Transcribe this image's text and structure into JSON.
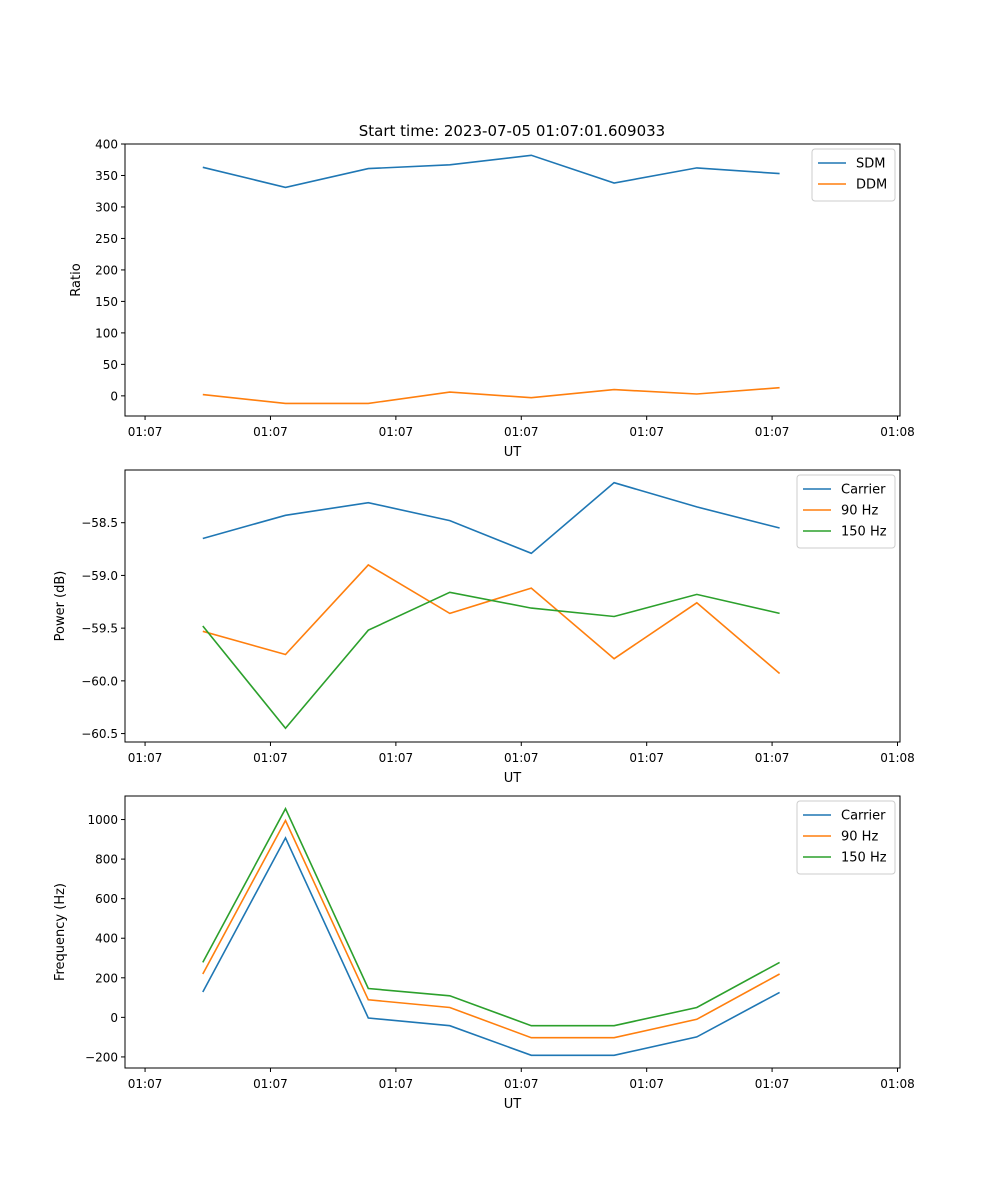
{
  "title": "Start time: 2023-07-05 01:07:01.609033",
  "colors": {
    "blue": "#1f77b4",
    "orange": "#ff7f0e",
    "green": "#2ca02c"
  },
  "chart_data": [
    {
      "type": "line",
      "xlabel": "UT",
      "ylabel": "Ratio",
      "xticks": [
        0,
        1,
        2,
        3,
        4,
        5,
        6
      ],
      "xtick_labels": [
        "01:07",
        "01:07",
        "01:07",
        "01:07",
        "01:07",
        "01:07",
        "01:08"
      ],
      "xlim": [
        -0.16,
        6.02
      ],
      "ylim": [
        -32,
        400
      ],
      "yticks": [
        0,
        50,
        100,
        150,
        200,
        250,
        300,
        350,
        400
      ],
      "ytick_labels": [
        "0",
        "50",
        "100",
        "150",
        "200",
        "250",
        "300",
        "350",
        "400"
      ],
      "x": [
        0.46,
        1.12,
        1.78,
        2.43,
        3.08,
        3.74,
        4.4,
        5.06
      ],
      "legend": "top-right",
      "series": [
        {
          "name": "SDM",
          "color": "#1f77b4",
          "values": [
            363,
            331,
            361,
            367,
            382,
            338,
            362,
            353
          ]
        },
        {
          "name": "DDM",
          "color": "#ff7f0e",
          "values": [
            2,
            -12,
            -12,
            6,
            -3,
            10,
            3,
            13
          ]
        }
      ]
    },
    {
      "type": "line",
      "xlabel": "UT",
      "ylabel": "Power (dB)",
      "xticks": [
        0,
        1,
        2,
        3,
        4,
        5,
        6
      ],
      "xtick_labels": [
        "01:07",
        "01:07",
        "01:07",
        "01:07",
        "01:07",
        "01:07",
        "01:08"
      ],
      "xlim": [
        -0.16,
        6.02
      ],
      "ylim": [
        -60.58,
        -58.0
      ],
      "yticks": [
        -60.5,
        -60.0,
        -59.5,
        -59.0,
        -58.5
      ],
      "ytick_labels": [
        "−60.5",
        "−60.0",
        "−59.5",
        "−59.0",
        "−58.5"
      ],
      "x": [
        0.46,
        1.12,
        1.78,
        2.43,
        3.08,
        3.74,
        4.4,
        5.06
      ],
      "legend": "top-right",
      "series": [
        {
          "name": "Carrier",
          "color": "#1f77b4",
          "values": [
            -58.65,
            -58.43,
            -58.31,
            -58.48,
            -58.79,
            -58.12,
            -58.35,
            -58.55
          ]
        },
        {
          "name": "90 Hz",
          "color": "#ff7f0e",
          "values": [
            -59.53,
            -59.75,
            -58.9,
            -59.36,
            -59.12,
            -59.79,
            -59.26,
            -59.93
          ]
        },
        {
          "name": "150 Hz",
          "color": "#2ca02c",
          "values": [
            -59.48,
            -60.45,
            -59.52,
            -59.16,
            -59.31,
            -59.39,
            -59.18,
            -59.36
          ]
        }
      ]
    },
    {
      "type": "line",
      "xlabel": "UT",
      "ylabel": "Frequency (Hz)",
      "xticks": [
        0,
        1,
        2,
        3,
        4,
        5,
        6
      ],
      "xtick_labels": [
        "01:07",
        "01:07",
        "01:07",
        "01:07",
        "01:07",
        "01:07",
        "01:08"
      ],
      "xlim": [
        -0.16,
        6.02
      ],
      "ylim": [
        -256,
        1119
      ],
      "yticks": [
        -200,
        0,
        200,
        400,
        600,
        800,
        1000
      ],
      "ytick_labels": [
        "−200",
        "0",
        "200",
        "400",
        "600",
        "800",
        "1000"
      ],
      "x": [
        0.46,
        1.12,
        1.78,
        2.43,
        3.08,
        3.74,
        4.4,
        5.06
      ],
      "legend": "top-right",
      "series": [
        {
          "name": "Carrier",
          "color": "#1f77b4",
          "values": [
            128,
            907,
            -3,
            -42,
            -192,
            -192,
            -99,
            126
          ]
        },
        {
          "name": "90 Hz",
          "color": "#ff7f0e",
          "values": [
            219,
            995,
            89,
            50,
            -103,
            -103,
            -10,
            219
          ]
        },
        {
          "name": "150 Hz",
          "color": "#2ca02c",
          "values": [
            278,
            1055,
            146,
            109,
            -42,
            -42,
            50,
            278
          ]
        }
      ]
    }
  ]
}
